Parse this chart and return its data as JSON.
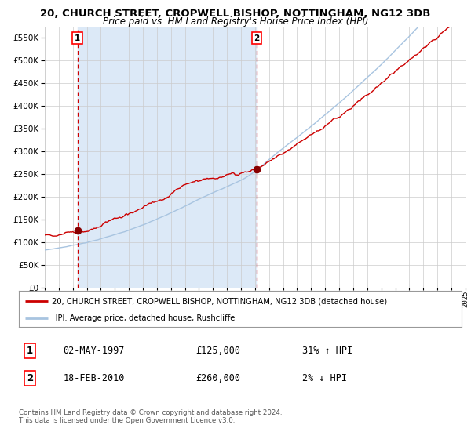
{
  "title": "20, CHURCH STREET, CROPWELL BISHOP, NOTTINGHAM, NG12 3DB",
  "subtitle": "Price paid vs. HM Land Registry's House Price Index (HPI)",
  "title_fontsize": 9.5,
  "subtitle_fontsize": 8.5,
  "x_start_year": 1995,
  "x_end_year": 2025,
  "ylim": [
    0,
    575000
  ],
  "yticks": [
    0,
    50000,
    100000,
    150000,
    200000,
    250000,
    300000,
    350000,
    400000,
    450000,
    500000,
    550000
  ],
  "ytick_labels": [
    "£0",
    "£50K",
    "£100K",
    "£150K",
    "£200K",
    "£250K",
    "£300K",
    "£350K",
    "£400K",
    "£450K",
    "£500K",
    "£550K"
  ],
  "marker1_year": 1997.33,
  "marker1_value": 125000,
  "marker2_year": 2010.12,
  "marker2_value": 260000,
  "vline1_year": 1997.33,
  "vline2_year": 2010.12,
  "shade_color": "#dce9f7",
  "hpi_color": "#a8c4e0",
  "price_color": "#cc0000",
  "marker_color": "#880000",
  "vline1_color": "#cc0000",
  "vline2_color": "#cc0000",
  "grid_color": "#cccccc",
  "legend_line1": "20, CHURCH STREET, CROPWELL BISHOP, NOTTINGHAM, NG12 3DB (detached house)",
  "legend_line2": "HPI: Average price, detached house, Rushcliffe",
  "table_row1_num": "1",
  "table_row1_date": "02-MAY-1997",
  "table_row1_price": "£125,000",
  "table_row1_hpi": "31% ↑ HPI",
  "table_row2_num": "2",
  "table_row2_date": "18-FEB-2010",
  "table_row2_price": "£260,000",
  "table_row2_hpi": "2% ↓ HPI",
  "footnote": "Contains HM Land Registry data © Crown copyright and database right 2024.\nThis data is licensed under the Open Government Licence v3.0.",
  "bg_color": "#ffffff",
  "label1_text": "1",
  "label2_text": "2"
}
